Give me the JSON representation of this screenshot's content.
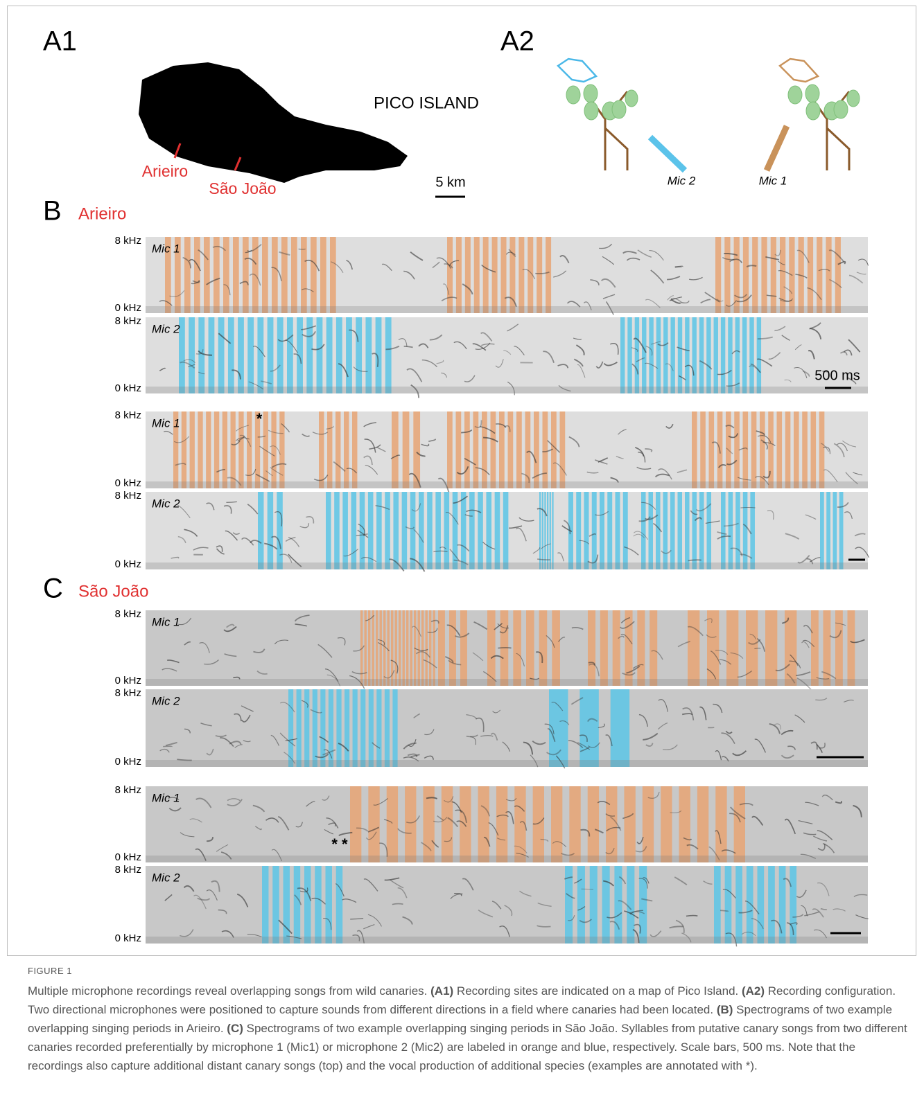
{
  "panel_a1": {
    "label": "A1",
    "island": "PICO ISLAND",
    "sites": [
      "Arieiro",
      "São João"
    ],
    "scale": "5 km"
  },
  "panel_a2": {
    "label": "A2",
    "mics": [
      "Mic 2",
      "Mic 1"
    ]
  },
  "panel_b": {
    "label": "B",
    "site": "Arieiro",
    "scale": "500 ms",
    "annotation": "*",
    "spectrograms": [
      {
        "mic": "Mic 1",
        "top": "8 kHz",
        "bottom": "0 kHz"
      },
      {
        "mic": "Mic 2",
        "top": "8 kHz",
        "bottom": "0 kHz"
      },
      {
        "mic": "Mic 1",
        "top": "8 kHz",
        "bottom": "0 kHz"
      },
      {
        "mic": "Mic 2",
        "top": "8 kHz",
        "bottom": "0 kHz"
      }
    ]
  },
  "panel_c": {
    "label": "C",
    "site": "São João",
    "annotation": "* *",
    "spectrograms": [
      {
        "mic": "Mic 1",
        "top": "8 kHz",
        "bottom": "0 kHz"
      },
      {
        "mic": "Mic 2",
        "top": "8 kHz",
        "bottom": "0 kHz"
      },
      {
        "mic": "Mic 1",
        "top": "8 kHz",
        "bottom": "0 kHz"
      },
      {
        "mic": "Mic 2",
        "top": "8 kHz",
        "bottom": "0 kHz"
      }
    ]
  },
  "caption": {
    "label": "FIGURE 1",
    "runs": [
      {
        "text": "Multiple microphone recordings reveal overlapping songs from wild canaries. ",
        "bold": false
      },
      {
        "text": "(A1)",
        "bold": true
      },
      {
        "text": " Recording sites are indicated on a map of Pico Island. ",
        "bold": false
      },
      {
        "text": "(A2)",
        "bold": true
      },
      {
        "text": " Recording configuration. Two directional microphones were positioned to capture sounds from different directions in a field where canaries had been located. ",
        "bold": false
      },
      {
        "text": "(B)",
        "bold": true
      },
      {
        "text": " Spectrograms of two example overlapping singing periods in Arieiro. ",
        "bold": false
      },
      {
        "text": "(C)",
        "bold": true
      },
      {
        "text": " Spectrograms of two example overlapping singing periods in São João. Syllables from putative canary songs from two different canaries recorded preferentially by microphone 1 (Mic1) or microphone 2 (Mic2) are labeled in orange and blue, respectively. Scale bars, 500 ms. Note that the recordings also capture additional distant canary songs (top) and the vocal production of additional species (examples are annotated with *).",
        "bold": false
      }
    ]
  }
}
